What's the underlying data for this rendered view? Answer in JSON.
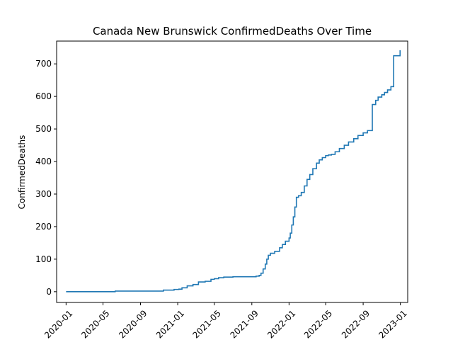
{
  "chart_data": {
    "type": "line",
    "title": "Canada New Brunswick ConfirmedDeaths Over Time",
    "xlabel": "",
    "ylabel": "ConfirmedDeaths",
    "x_tick_labels": [
      "2020-01",
      "2020-05",
      "2020-09",
      "2021-01",
      "2021-05",
      "2021-09",
      "2022-01",
      "2022-05",
      "2022-09",
      "2023-01"
    ],
    "y_tick_labels": [
      "0",
      "100",
      "200",
      "300",
      "400",
      "500",
      "600",
      "700"
    ],
    "ylim": [
      -33,
      770
    ],
    "xlim": [
      "2019-12-01",
      "2023-01-25"
    ],
    "grid": false,
    "line_color": "#1f77b4",
    "series": [
      {
        "step": "post",
        "x": [
          "2020-01-01",
          "2020-06-10",
          "2020-10-20",
          "2020-11-15",
          "2020-12-20",
          "2021-01-05",
          "2021-01-15",
          "2021-02-01",
          "2021-02-20",
          "2021-03-10",
          "2021-04-01",
          "2021-04-20",
          "2021-05-01",
          "2021-05-15",
          "2021-06-01",
          "2021-07-01",
          "2021-08-01",
          "2021-09-15",
          "2021-09-25",
          "2021-10-01",
          "2021-10-08",
          "2021-10-15",
          "2021-10-20",
          "2021-10-25",
          "2021-11-01",
          "2021-11-15",
          "2021-12-01",
          "2021-12-10",
          "2021-12-20",
          "2022-01-01",
          "2022-01-05",
          "2022-01-10",
          "2022-01-15",
          "2022-01-20",
          "2022-01-25",
          "2022-02-01",
          "2022-02-10",
          "2022-02-20",
          "2022-03-01",
          "2022-03-10",
          "2022-03-20",
          "2022-04-01",
          "2022-04-10",
          "2022-04-20",
          "2022-05-01",
          "2022-05-10",
          "2022-05-20",
          "2022-06-01",
          "2022-06-15",
          "2022-07-01",
          "2022-07-15",
          "2022-08-01",
          "2022-08-15",
          "2022-09-01",
          "2022-09-15",
          "2022-10-01",
          "2022-10-12",
          "2022-10-20",
          "2022-11-01",
          "2022-11-10",
          "2022-11-20",
          "2022-12-01",
          "2022-12-10",
          "2022-12-20",
          "2022-12-31"
        ],
        "values": [
          0,
          2,
          2,
          5,
          7,
          8,
          12,
          18,
          22,
          30,
          32,
          38,
          40,
          43,
          45,
          46,
          46,
          48,
          50,
          57,
          70,
          85,
          100,
          112,
          118,
          124,
          135,
          145,
          155,
          165,
          180,
          205,
          230,
          260,
          290,
          295,
          305,
          325,
          345,
          360,
          378,
          395,
          405,
          412,
          418,
          420,
          422,
          430,
          440,
          450,
          460,
          470,
          480,
          488,
          495,
          575,
          588,
          598,
          605,
          612,
          620,
          630,
          725,
          725,
          742
        ]
      }
    ]
  }
}
